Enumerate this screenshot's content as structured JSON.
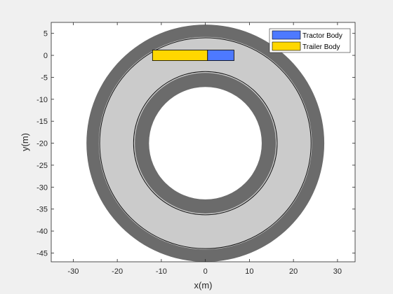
{
  "chart_data": {
    "type": "scatter",
    "title": "",
    "xlabel": "x(m)",
    "ylabel": "y(m)",
    "xlim": [
      -35,
      34
    ],
    "ylim": [
      -47,
      7.5
    ],
    "xticks": [
      -30,
      -20,
      -10,
      0,
      10,
      20,
      30
    ],
    "yticks": [
      5,
      0,
      -5,
      -10,
      -15,
      -20,
      -25,
      -30,
      -35,
      -40,
      -45
    ],
    "grid": false,
    "legend": {
      "placement": "top-right",
      "entries": [
        "Tractor Body",
        "Trailer Body"
      ]
    },
    "track": {
      "center": [
        0,
        -20
      ],
      "rings": [
        {
          "name": "outer-road",
          "inner_radius": 24.2,
          "outer_radius": 27,
          "color": "#6b6b6b"
        },
        {
          "name": "infield",
          "inner_radius": 16,
          "outer_radius": 24.2,
          "color": "#cbcbcb"
        },
        {
          "name": "inner-road",
          "inner_radius": 12.8,
          "outer_radius": 16,
          "color": "#6b6b6b"
        }
      ],
      "lane_lines": [
        24,
        16.3
      ]
    },
    "series": [
      {
        "name": "Tractor Body",
        "color": "#4d79ff",
        "x": [
          0.5,
          6.5
        ],
        "y": [
          -1.2,
          1.2
        ]
      },
      {
        "name": "Trailer Body",
        "color": "#ffd700",
        "x": [
          -12,
          0.5
        ],
        "y": [
          -1.2,
          1.2
        ]
      }
    ]
  }
}
